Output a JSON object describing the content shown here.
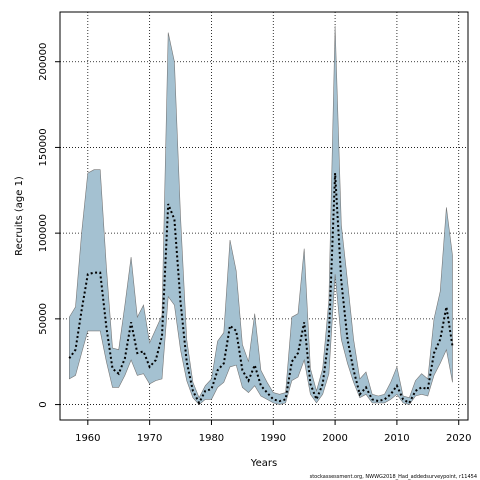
{
  "chart_data": {
    "type": "area",
    "xlabel": "Years",
    "ylabel": "Recruits (age 1)",
    "xlim": [
      1955.5,
      2021.5
    ],
    "ylim": [
      -9000,
      229000
    ],
    "xticks": [
      1960,
      1970,
      1980,
      1990,
      2000,
      2010,
      2020
    ],
    "yticks": [
      0,
      50000,
      100000,
      150000,
      200000
    ],
    "grid": true,
    "x": [
      1957,
      1958,
      1959,
      1960,
      1961,
      1962,
      1963,
      1964,
      1965,
      1966,
      1967,
      1968,
      1969,
      1970,
      1971,
      1972,
      1973,
      1974,
      1975,
      1976,
      1977,
      1978,
      1979,
      1980,
      1981,
      1982,
      1983,
      1984,
      1985,
      1986,
      1987,
      1988,
      1989,
      1990,
      1991,
      1992,
      1993,
      1994,
      1995,
      1996,
      1997,
      1998,
      1999,
      2000,
      2001,
      2002,
      2003,
      2004,
      2005,
      2006,
      2007,
      2008,
      2009,
      2010,
      2011,
      2012,
      2013,
      2014,
      2015,
      2016,
      2017,
      2018,
      2019
    ],
    "series": [
      {
        "values": [
          27000,
          32000,
          55000,
          76000,
          77000,
          77000,
          45000,
          21000,
          18000,
          27000,
          48000,
          30000,
          31000,
          22000,
          26000,
          40000,
          117000,
          108000,
          60000,
          25000,
          8000,
          1000,
          8000,
          9000,
          20000,
          24000,
          46000,
          43000,
          20000,
          14000,
          23000,
          11000,
          7000,
          3000,
          2000,
          3000,
          25000,
          30000,
          48000,
          12000,
          3000,
          12000,
          40000,
          135000,
          72000,
          38000,
          20000,
          6000,
          10000,
          3000,
          2000,
          3000,
          6000,
          11000,
          3000,
          1000,
          8000,
          10000,
          9000,
          30000,
          38000,
          57000,
          34000
        ]
      },
      {
        "values": [
          51000,
          57000,
          100000,
          135000,
          137000,
          137000,
          80000,
          33000,
          32000,
          58000,
          86000,
          51000,
          58000,
          36000,
          44000,
          52000,
          217000,
          200000,
          110000,
          38000,
          13000,
          4000,
          11000,
          15000,
          37000,
          42000,
          96000,
          78000,
          35000,
          25000,
          53000,
          20000,
          13000,
          7000,
          6000,
          7000,
          51000,
          53000,
          91000,
          21000,
          8000,
          21000,
          61000,
          221000,
          105000,
          72000,
          38000,
          15000,
          19000,
          6000,
          5000,
          6000,
          13000,
          22000,
          5000,
          4000,
          14000,
          18000,
          15000,
          50000,
          66000,
          115000,
          87000
        ]
      },
      {
        "values": [
          15000,
          17000,
          30000,
          43000,
          43000,
          43000,
          25000,
          10000,
          10000,
          17000,
          26000,
          17000,
          18000,
          12000,
          14000,
          15000,
          63000,
          58000,
          32000,
          14000,
          4000,
          0,
          3000,
          3000,
          10000,
          13000,
          22000,
          23000,
          10000,
          7000,
          11000,
          5000,
          3000,
          1000,
          0,
          1000,
          14000,
          16000,
          26000,
          6000,
          1000,
          6000,
          18000,
          76000,
          38000,
          24000,
          13000,
          4000,
          6000,
          1000,
          1000,
          1000,
          3000,
          6000,
          1000,
          0,
          5000,
          6000,
          5000,
          17000,
          24000,
          32000,
          13000
        ]
      }
    ],
    "colors": {
      "band_fill": "#a4c1d1",
      "band_stroke": "#757575",
      "line": "#000000",
      "grid": "#000000",
      "frame": "#000000"
    }
  },
  "footnote": "stockassessment.org, NWWG2018_Had_addedsurveypoint, r11454"
}
